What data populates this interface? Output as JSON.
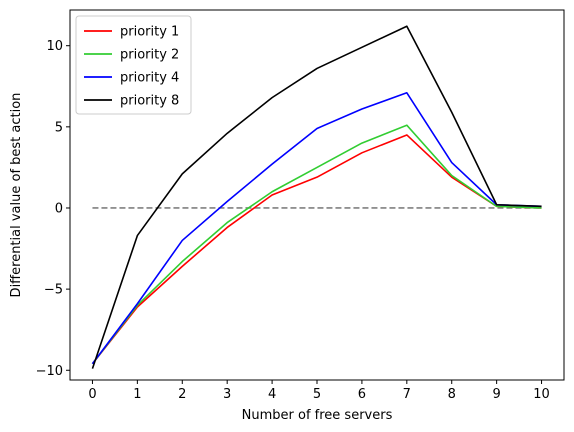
{
  "chart_data": {
    "type": "line",
    "xlabel": "Number of free servers",
    "ylabel": "Differential value of best action",
    "xlim": [
      -0.5,
      10.5
    ],
    "ylim": [
      -10.6,
      12.2
    ],
    "xticks": [
      0,
      1,
      2,
      3,
      4,
      5,
      6,
      7,
      8,
      9,
      10
    ],
    "yticks": [
      -10,
      -5,
      0,
      5,
      10
    ],
    "grid": false,
    "legend_position": "top-left",
    "x": [
      0,
      1,
      2,
      3,
      4,
      5,
      6,
      7,
      8,
      9,
      10
    ],
    "series": [
      {
        "name": "priority 1",
        "color": "#ff0000",
        "values": [
          -9.6,
          -6.1,
          -3.6,
          -1.2,
          0.8,
          1.9,
          3.4,
          4.5,
          1.9,
          0.1,
          0.0
        ]
      },
      {
        "name": "priority 2",
        "color": "#32cd32",
        "values": [
          -9.6,
          -6.0,
          -3.3,
          -0.9,
          1.0,
          2.5,
          4.0,
          5.1,
          2.0,
          0.1,
          0.0
        ]
      },
      {
        "name": "priority 4",
        "color": "#0000ff",
        "values": [
          -9.6,
          -5.9,
          -2.0,
          0.4,
          2.7,
          4.9,
          6.1,
          7.1,
          2.8,
          0.2,
          0.1
        ]
      },
      {
        "name": "priority 8",
        "color": "#000000",
        "values": [
          -9.9,
          -1.7,
          2.1,
          4.6,
          6.8,
          8.6,
          9.9,
          11.2,
          5.9,
          0.2,
          0.1
        ]
      }
    ],
    "reference_line": {
      "y": 0,
      "x_range": [
        0,
        10
      ],
      "color": "#808080",
      "style": "dashed"
    }
  }
}
